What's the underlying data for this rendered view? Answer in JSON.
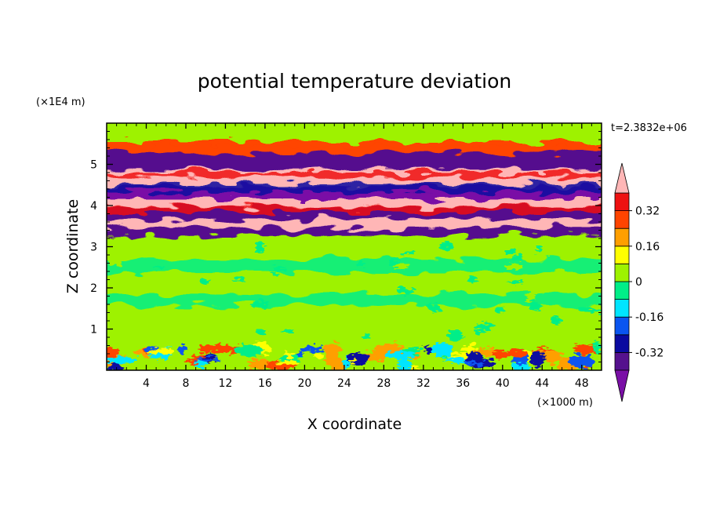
{
  "chart_data": {
    "type": "contour",
    "title": "potential temperature deviation",
    "xlabel": "X coordinate",
    "ylabel": "Z coordinate",
    "x_unit": "(×1000 m)",
    "y_unit": "(×1E4 m)",
    "time_label": "t=2.3832e+06",
    "xlim": [
      0,
      50
    ],
    "ylim": [
      0,
      6
    ],
    "x_ticks": [
      4,
      8,
      12,
      16,
      20,
      24,
      28,
      32,
      36,
      40,
      44,
      48
    ],
    "x_tick_labels": [
      "4",
      "8",
      "12",
      "16",
      "20",
      "24",
      "28",
      "32",
      "36",
      "40",
      "44",
      "48"
    ],
    "y_ticks": [
      1,
      2,
      3,
      4,
      5
    ],
    "y_tick_labels": [
      "1",
      "2",
      "3",
      "4",
      "5"
    ],
    "colorbar": {
      "levels": [
        -0.4,
        -0.32,
        -0.24,
        -0.16,
        -0.08,
        0,
        0.08,
        0.16,
        0.24,
        0.32,
        0.4
      ],
      "labeled_levels": [
        "0.32",
        "0.16",
        "0",
        "-0.16",
        "-0.32"
      ],
      "label_values": [
        0.32,
        0.16,
        0,
        -0.16,
        -0.32
      ],
      "colors": [
        "#7a0fa6",
        "#55118e",
        "#0a0aa0",
        "#0a55f0",
        "#00e5ff",
        "#00ee88",
        "#9ef200",
        "#ffff00",
        "#ff9f00",
        "#ff4400",
        "#ee1111",
        "#ffb6b6"
      ],
      "extend": "both"
    },
    "bands": [
      {
        "y": [
          0.0,
          0.6
        ],
        "description": "noisy near-surface layer",
        "value": 0.0
      },
      {
        "y": [
          0.6,
          3.3
        ],
        "value": 0.02
      },
      {
        "y": [
          3.3,
          3.5
        ],
        "value": -0.35
      },
      {
        "y": [
          3.5,
          3.7
        ],
        "value": 0.45
      },
      {
        "y": [
          3.7,
          4.0
        ],
        "value": -0.38
      },
      {
        "y": [
          4.0,
          4.2
        ],
        "value": 0.42
      },
      {
        "y": [
          4.2,
          4.5
        ],
        "value": -0.42
      },
      {
        "y": [
          4.5,
          4.9
        ],
        "value": 0.44
      },
      {
        "y": [
          4.9,
          5.3
        ],
        "value": -0.4
      },
      {
        "y": [
          5.3,
          5.6
        ],
        "value": 0.3
      },
      {
        "y": [
          5.6,
          6.0
        ],
        "value": 0.05
      }
    ]
  }
}
